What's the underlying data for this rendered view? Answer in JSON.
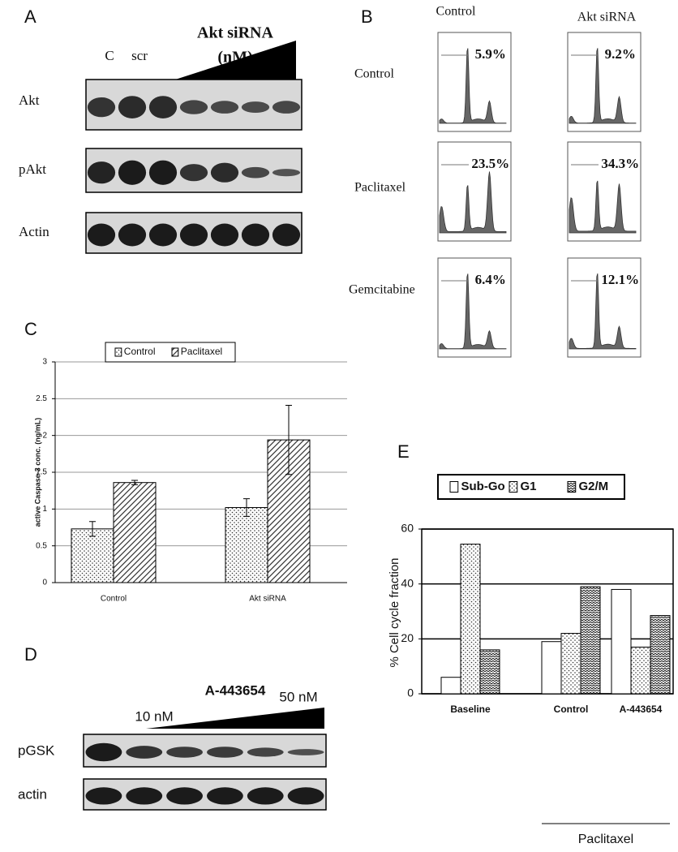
{
  "panel_a": {
    "label": "A",
    "title_lines": [
      "Akt siRNA",
      "(nM)"
    ],
    "lanes": [
      "C",
      "scr"
    ],
    "rows": [
      "Akt",
      "pAkt",
      "Actin"
    ]
  },
  "panel_b": {
    "label": "B",
    "columns": [
      "Control",
      "Akt siRNA"
    ],
    "rows": [
      {
        "label": "Control",
        "percents": [
          "5.9%",
          "9.2%"
        ]
      },
      {
        "label": "Paclitaxel",
        "percents": [
          "23.5%",
          "34.3%"
        ]
      },
      {
        "label": "Gemcitabine",
        "percents": [
          "6.4%",
          "12.1%"
        ]
      }
    ]
  },
  "panel_d": {
    "label": "D",
    "title": "A-443654",
    "dose_low": "10 nM",
    "dose_high": "50 nM",
    "rows": [
      "pGSK",
      "actin"
    ]
  },
  "chart_data": [
    {
      "type": "bar",
      "label": "C",
      "ylabel": "active Caspase-3 conc. (ng/mL)",
      "categories": [
        "Control",
        "Akt siRNA"
      ],
      "series": [
        {
          "name": "Control",
          "pattern": "dots",
          "values": [
            0.73,
            1.02
          ],
          "errors": [
            0.1,
            0.12
          ]
        },
        {
          "name": "Paclitaxel",
          "pattern": "hatch",
          "values": [
            1.36,
            1.94
          ],
          "errors": [
            0.03,
            0.47
          ]
        }
      ],
      "ylim": [
        0,
        3
      ],
      "yticks": [
        0,
        0.5,
        1,
        1.5,
        2,
        2.5,
        3
      ],
      "grid": true
    },
    {
      "type": "bar",
      "label": "E",
      "ylabel": "% Cell cycle fraction",
      "categories": [
        "Baseline",
        "Control",
        "A-443654"
      ],
      "group_label": "Paclitaxel",
      "series": [
        {
          "name": "Sub-Go",
          "pattern": "none",
          "values": [
            6,
            19,
            38
          ]
        },
        {
          "name": "G1",
          "pattern": "dots",
          "values": [
            54.5,
            22,
            17
          ]
        },
        {
          "name": "G2/M",
          "pattern": "zigzag",
          "values": [
            16,
            39,
            28.5
          ]
        }
      ],
      "ylim": [
        0,
        60
      ],
      "yticks": [
        0,
        20,
        40,
        60
      ],
      "grid": true
    }
  ]
}
